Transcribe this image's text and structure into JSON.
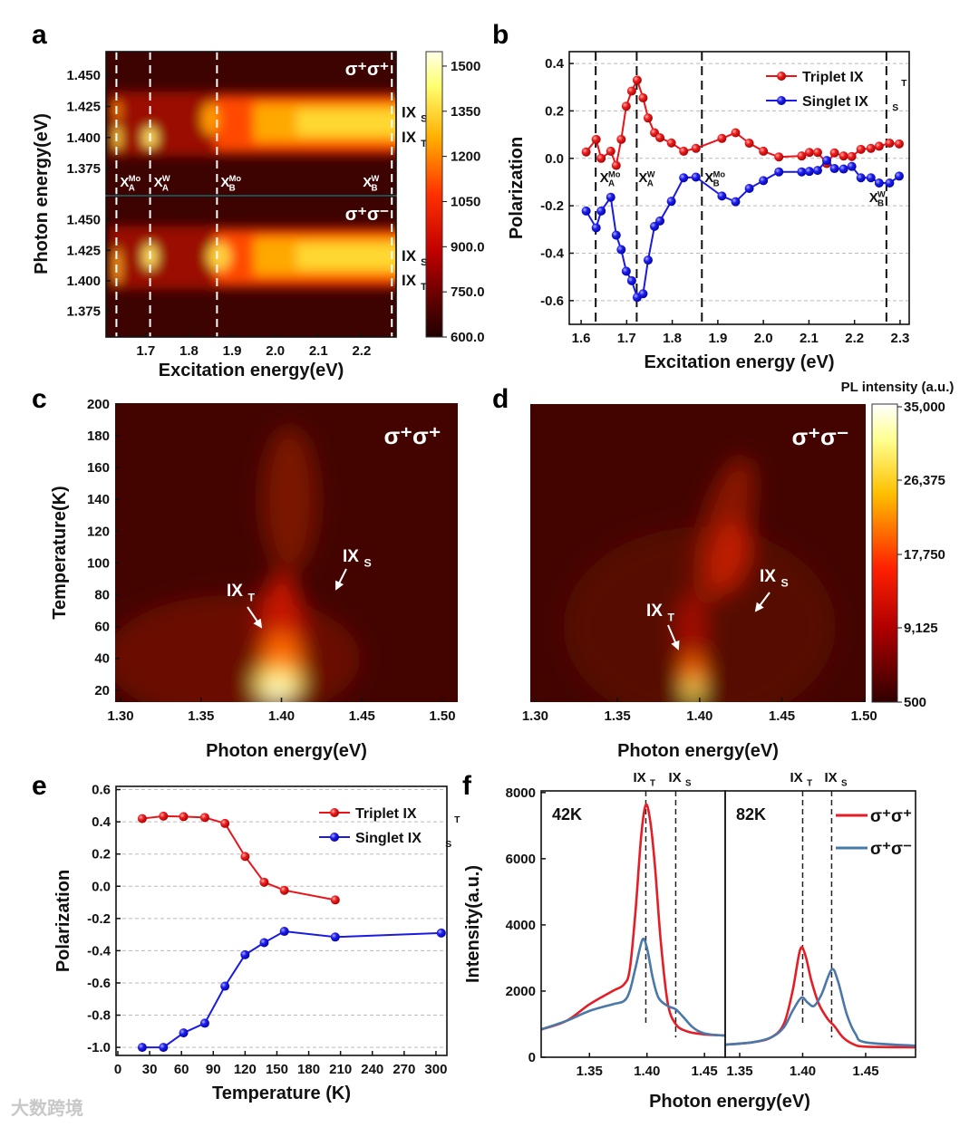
{
  "panel_labels": [
    "a",
    "b",
    "c",
    "d",
    "e",
    "f"
  ],
  "watermark": "大数跨境",
  "chart_data": [
    {
      "panel": "a",
      "type": "heatmap",
      "xlabel": "Excitation energy(eV)",
      "ylabel": "Photon energy(eV)",
      "xlim": [
        1.608,
        2.28
      ],
      "ylim": [
        1.354,
        1.469
      ],
      "xticks": [
        "1.7",
        "1.8",
        "1.9",
        "2.0",
        "2.1",
        "2.2"
      ],
      "yticks": [
        "1.450",
        "1.425",
        "1.400",
        "1.375"
      ],
      "subplots": [
        {
          "config": "σ⁺σ⁺",
          "side_labels": [
            {
              "main": "IX",
              "sub": "S"
            },
            {
              "main": "IX",
              "sub": "T"
            }
          ]
        },
        {
          "config": "σ⁺σ⁻",
          "side_labels": [
            {
              "main": "IX",
              "sub": "S"
            },
            {
              "main": "IX",
              "sub": "T"
            }
          ]
        }
      ],
      "resonances": [
        {
          "x": 1.632,
          "main": "X",
          "sub": "A",
          "sup": "Mo"
        },
        {
          "x": 1.71,
          "main": "X",
          "sub": "A",
          "sup": "W"
        },
        {
          "x": 1.865,
          "main": "X",
          "sub": "B",
          "sup": "Mo"
        },
        {
          "x": 2.27,
          "main": "X",
          "sub": "B",
          "sup": "W"
        }
      ],
      "colorbar": {
        "min": 600,
        "max": 1548,
        "ticks": [
          "1500",
          "1350",
          "1200",
          "1050",
          "900.0",
          "750.0",
          "600.0"
        ]
      }
    },
    {
      "panel": "b",
      "type": "line",
      "xlabel": "Excitation energy (eV)",
      "ylabel": "Polarization",
      "xlim": [
        1.574,
        2.32
      ],
      "ylim": [
        -0.7,
        0.45
      ],
      "xticks": [
        "1.6",
        "1.7",
        "1.8",
        "1.9",
        "2.0",
        "2.1",
        "2.2",
        "2.3"
      ],
      "yticks": [
        "0.4",
        "0.2",
        "0.0",
        "-0.2",
        "-0.4",
        "-0.6"
      ],
      "grid": true,
      "legend": "top-right",
      "vlines": [
        1.632,
        1.722,
        1.865,
        2.27
      ],
      "resonance_labels": [
        {
          "main": "X",
          "sub": "A",
          "sup": "Mo"
        },
        {
          "main": "X",
          "sub": "A",
          "sup": "W"
        },
        {
          "main": "X",
          "sub": "B",
          "sup": "Mo"
        },
        {
          "main": "X",
          "sub": "B",
          "sup": "W"
        }
      ],
      "series": [
        {
          "name": {
            "main": "Triplet  IX",
            "sub": "T"
          },
          "color": "#e8141a",
          "x": [
            1.611,
            1.633,
            1.644,
            1.665,
            1.677,
            1.688,
            1.699,
            1.711,
            1.723,
            1.736,
            1.747,
            1.761,
            1.773,
            1.798,
            1.825,
            1.852,
            1.909,
            1.939,
            1.969,
            2.0,
            2.034,
            2.084,
            2.101,
            2.119,
            2.139,
            2.156,
            2.176,
            2.194,
            2.214,
            2.236,
            2.254,
            2.277,
            2.298
          ],
          "y": [
            0.027,
            0.08,
            0.0,
            0.03,
            -0.03,
            0.08,
            0.22,
            0.284,
            0.33,
            0.255,
            0.17,
            0.108,
            0.087,
            0.065,
            0.03,
            0.042,
            0.084,
            0.108,
            0.064,
            0.03,
            0.006,
            0.01,
            0.025,
            0.025,
            -0.022,
            0.023,
            0.01,
            0.008,
            0.038,
            0.042,
            0.051,
            0.064,
            0.061
          ]
        },
        {
          "name": {
            "main": "Singlet IX",
            "sub": "S"
          },
          "color": "#1a1ae0",
          "x": [
            1.611,
            1.633,
            1.644,
            1.665,
            1.677,
            1.688,
            1.699,
            1.711,
            1.723,
            1.736,
            1.747,
            1.761,
            1.773,
            1.798,
            1.825,
            1.852,
            1.909,
            1.939,
            1.969,
            2.0,
            2.034,
            2.084,
            2.101,
            2.119,
            2.139,
            2.156,
            2.176,
            2.194,
            2.214,
            2.236,
            2.254,
            2.277,
            2.298
          ],
          "y": [
            -0.222,
            -0.293,
            -0.222,
            -0.164,
            -0.324,
            -0.385,
            -0.476,
            -0.516,
            -0.586,
            -0.571,
            -0.429,
            -0.287,
            -0.264,
            -0.181,
            -0.082,
            -0.079,
            -0.159,
            -0.183,
            -0.127,
            -0.094,
            -0.057,
            -0.057,
            -0.055,
            -0.051,
            -0.009,
            -0.043,
            -0.045,
            -0.034,
            -0.082,
            -0.082,
            -0.104,
            -0.104,
            -0.075
          ]
        }
      ]
    },
    {
      "panel": "c",
      "type": "heatmap",
      "xlabel": "Photon energy(eV)",
      "ylabel": "Temperature(K)",
      "xlim": [
        1.2966,
        1.5096
      ],
      "ylim": [
        12.5,
        200.5
      ],
      "xticks": [
        "1.30",
        "1.35",
        "1.40",
        "1.45",
        "1.50"
      ],
      "yticks": [
        "200",
        "180",
        "160",
        "140",
        "120",
        "100",
        "80",
        "60",
        "40",
        "20"
      ],
      "config": "σ⁺σ⁺",
      "annotations": [
        {
          "main": "IX",
          "sub": "T"
        },
        {
          "main": "IX",
          "sub": "S"
        }
      ]
    },
    {
      "panel": "d",
      "type": "heatmap",
      "xlabel": "Photon energy(eV)",
      "xlim": [
        1.297,
        1.501
      ],
      "ylim": [
        12.5,
        200.5
      ],
      "xticks": [
        "1.30",
        "1.35",
        "1.40",
        "1.45",
        "1.50"
      ],
      "config": "σ⁺σ⁻",
      "annotations": [
        {
          "main": "IX",
          "sub": "T"
        },
        {
          "main": "IX",
          "sub": "S"
        }
      ],
      "colorbar": {
        "title": "PL intensity (a.u.)",
        "min": 500,
        "max": 35000,
        "ticks": [
          "35,000",
          "26,375",
          "17,750",
          "9,125",
          "500"
        ]
      }
    },
    {
      "panel": "e",
      "type": "line",
      "xlabel": "Temperature (K)",
      "ylabel": "Polarization",
      "xlim": [
        -1.7,
        310.3
      ],
      "ylim": [
        -1.05,
        0.62
      ],
      "xticks": [
        "0",
        "30",
        "60",
        "90",
        "120",
        "150",
        "180",
        "210",
        "240",
        "270",
        "300"
      ],
      "yticks": [
        "0.6",
        "0.4",
        "0.2",
        "0.0",
        "-0.2",
        "-0.4",
        "-0.6",
        "-0.8",
        "-1.0"
      ],
      "grid": true,
      "legend": "top-right",
      "series": [
        {
          "name": {
            "main": "Triplet  IX",
            "sub": "T"
          },
          "color": "#e8141a",
          "x": [
            23,
            43,
            62,
            82,
            101,
            120,
            138,
            157,
            205
          ],
          "y": [
            0.42,
            0.435,
            0.432,
            0.427,
            0.39,
            0.185,
            0.025,
            -0.025,
            -0.085
          ]
        },
        {
          "name": {
            "main": "Singlet IX",
            "sub": "S"
          },
          "color": "#1a1ae0",
          "x": [
            23,
            43,
            62,
            82,
            101,
            120,
            138,
            157,
            205,
            305
          ],
          "y": [
            -1.0,
            -1.0,
            -0.91,
            -0.85,
            -0.62,
            -0.425,
            -0.35,
            -0.28,
            -0.315,
            -0.29
          ]
        }
      ]
    },
    {
      "panel": "f",
      "type": "line",
      "xlabel": "Photon energy(eV)",
      "ylabel": "Intensity(a.u.)",
      "ylim": [
        0,
        8050
      ],
      "yticks": [
        "0",
        "2000",
        "4000",
        "6000",
        "8000"
      ],
      "peak_labels": [
        {
          "main": "IX",
          "sub": "T"
        },
        {
          "main": "IX",
          "sub": "S"
        }
      ],
      "legend": "top-right",
      "legend_entries": [
        "σ⁺σ⁺",
        "σ⁺σ⁻"
      ],
      "colors": [
        "#e41e26",
        "#4a78a8"
      ],
      "subplots": [
        {
          "temperature": "42K",
          "xlim": [
            1.308,
            1.468
          ],
          "xticks": [
            "1.35",
            "1.40",
            "1.45"
          ],
          "vlines": [
            1.399,
            1.425
          ],
          "series": [
            {
              "name": "σ⁺σ⁺",
              "x": [
                1.308,
                1.33,
                1.35,
                1.37,
                1.38,
                1.385,
                1.39,
                1.395,
                1.399,
                1.403,
                1.407,
                1.412,
                1.418,
                1.425,
                1.435,
                1.45,
                1.468
              ],
              "y": [
                840,
                1100,
                1600,
                2000,
                2200,
                2650,
                4400,
                6700,
                7630,
                7100,
                5750,
                3500,
                1650,
                1000,
                780,
                690,
                660
              ]
            },
            {
              "name": "σ⁺σ⁻",
              "x": [
                1.308,
                1.33,
                1.35,
                1.37,
                1.38,
                1.385,
                1.39,
                1.396,
                1.4,
                1.405,
                1.41,
                1.418,
                1.425,
                1.432,
                1.44,
                1.45,
                1.468
              ],
              "y": [
                840,
                1100,
                1400,
                1600,
                1700,
                2000,
                2700,
                3550,
                3300,
                2400,
                1800,
                1550,
                1450,
                1200,
                900,
                720,
                650
              ]
            }
          ]
        },
        {
          "temperature": "82K",
          "xlim": [
            1.3385,
            1.4896
          ],
          "xticks": [
            "1.35",
            "1.40",
            "1.45"
          ],
          "vlines": [
            1.4,
            1.423
          ],
          "series": [
            {
              "name": "σ⁺σ⁺",
              "x": [
                1.3385,
                1.36,
                1.375,
                1.385,
                1.392,
                1.398,
                1.402,
                1.407,
                1.413,
                1.42,
                1.425,
                1.432,
                1.44,
                1.45,
                1.4896
              ],
              "y": [
                380,
                450,
                600,
                1000,
                2000,
                3250,
                3100,
                2300,
                1600,
                1150,
                950,
                600,
                400,
                320,
                300
              ]
            },
            {
              "name": "σ⁺σ⁻",
              "x": [
                1.3385,
                1.36,
                1.375,
                1.385,
                1.392,
                1.399,
                1.404,
                1.409,
                1.415,
                1.423,
                1.428,
                1.435,
                1.442,
                1.45,
                1.4896
              ],
              "y": [
                380,
                450,
                600,
                900,
                1400,
                1800,
                1650,
                1550,
                1900,
                2650,
                2300,
                1300,
                700,
                450,
                350
              ]
            }
          ]
        }
      ]
    }
  ]
}
